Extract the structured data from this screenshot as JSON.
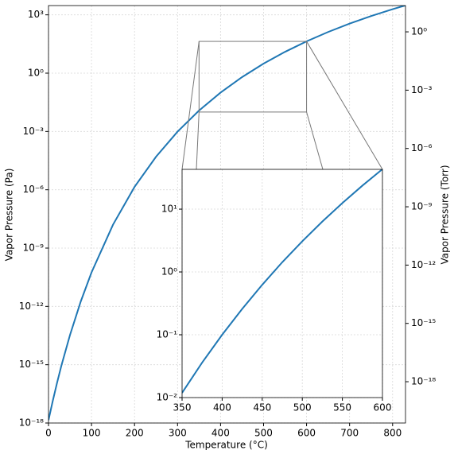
{
  "chart_data": {
    "type": "line",
    "xlabel": "Temperature (°C)",
    "ylabel": "Vapor Pressure (Pa)",
    "y2label": "Vapor Pressure (Torr)",
    "color": "#1f77b4",
    "yscale": "log",
    "grid": true,
    "x": [
      0,
      10,
      20,
      30,
      50,
      75,
      100,
      150,
      200,
      250,
      300,
      350,
      400,
      450,
      500,
      550,
      600,
      650,
      700,
      750,
      800,
      830
    ],
    "values": [
      1.4e-18,
      1.4e-17,
      1.2e-16,
      9e-16,
      3.4e-14,
      1.8e-12,
      5.6e-11,
      1.6e-08,
      1.4e-06,
      5e-05,
      0.00098,
      0.0119,
      0.1,
      0.625,
      3.08,
      12.5,
      43.3,
      131,
      353,
      865,
      1950,
      3060
    ],
    "xlim": [
      0,
      830
    ],
    "ylim": [
      1e-18,
      3000
    ],
    "y2lim": [
      7.5e-21,
      22.5
    ],
    "xticks": [
      0,
      100,
      200,
      300,
      400,
      500,
      600,
      700,
      800
    ],
    "yticks": [
      {
        "value": 1e-18,
        "label": "10⁻¹⁸"
      },
      {
        "value": 1e-15,
        "label": "10⁻¹⁵"
      },
      {
        "value": 1e-12,
        "label": "10⁻¹²"
      },
      {
        "value": 1e-09,
        "label": "10⁻⁹"
      },
      {
        "value": 1e-06,
        "label": "10⁻⁶"
      },
      {
        "value": 0.001,
        "label": "10⁻³"
      },
      {
        "value": 1,
        "label": "10⁰"
      },
      {
        "value": 1000,
        "label": "10³"
      }
    ],
    "y2ticks": [
      {
        "value": 1e-18,
        "label": "10⁻¹⁸"
      },
      {
        "value": 1e-15,
        "label": "10⁻¹⁵"
      },
      {
        "value": 1e-12,
        "label": "10⁻¹²"
      },
      {
        "value": 1e-09,
        "label": "10⁻⁹"
      },
      {
        "value": 1e-06,
        "label": "10⁻⁶"
      },
      {
        "value": 0.001,
        "label": "10⁻³"
      },
      {
        "value": 1,
        "label": "10⁰"
      }
    ],
    "inset": {
      "type": "line",
      "yscale": "log",
      "grid": true,
      "x": [
        350,
        375,
        400,
        425,
        450,
        475,
        500,
        525,
        550,
        575,
        600
      ],
      "values": [
        0.0119,
        0.036,
        0.1,
        0.258,
        0.625,
        1.43,
        3.08,
        6.35,
        12.5,
        23.7,
        43.3
      ],
      "xlim": [
        350,
        600
      ],
      "ylim": [
        0.01,
        43
      ],
      "xticks": [
        350,
        400,
        450,
        500,
        550,
        600
      ],
      "yticks": [
        {
          "value": 0.01,
          "label": "10⁻²"
        },
        {
          "value": 0.1,
          "label": "10⁻¹"
        },
        {
          "value": 1,
          "label": "10⁰"
        },
        {
          "value": 10,
          "label": "10¹"
        }
      ]
    }
  }
}
